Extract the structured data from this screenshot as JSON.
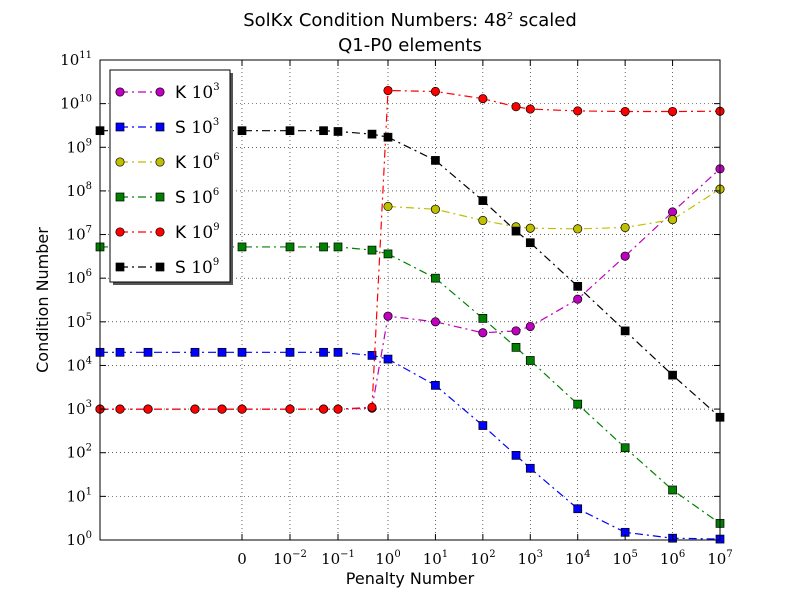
{
  "chart_data": {
    "type": "line",
    "title": [
      "SolKx Condition Numbers: 48²  scaled",
      "Q1-P0 elements"
    ],
    "xlabel": "Penalty Number",
    "ylabel": "Condition Number",
    "yscale": "log",
    "ylim": [
      1,
      100000000000
    ],
    "y_tick_labels": [
      "10^0",
      "10^1",
      "10^2",
      "10^3",
      "10^4",
      "10^5",
      "10^6",
      "10^7",
      "10^8",
      "10^9",
      "10^10",
      "10^11"
    ],
    "x_tick_labels": [
      "0",
      "10^-2",
      "10^-1",
      "10^0",
      "10^1",
      "10^2",
      "10^3",
      "10^4",
      "10^5",
      "10^6",
      "10^7"
    ],
    "grid": true,
    "legend_position": "top-left",
    "series": [
      {
        "name": "K 10^3",
        "color": "#bf00bf",
        "marker": "circle",
        "points": [
          {
            "x": 1e-08,
            "y": 1000
          },
          {
            "x": 3e-08,
            "y": 1000
          },
          {
            "x": 1e-07,
            "y": 1000
          },
          {
            "x": 1e-06,
            "y": 1000
          },
          {
            "x": 1e-05,
            "y": 1000
          },
          {
            "x": 0,
            "y": 1000
          },
          {
            "x": 0.01,
            "y": 1000
          },
          {
            "x": 0.05,
            "y": 1000
          },
          {
            "x": 0.1,
            "y": 1000
          },
          {
            "x": 0.5,
            "y": 1050
          },
          {
            "x": 1,
            "y": 135000
          },
          {
            "x": 10,
            "y": 100000
          },
          {
            "x": 100,
            "y": 56000
          },
          {
            "x": 500,
            "y": 62000
          },
          {
            "x": 1000,
            "y": 78000
          },
          {
            "x": 10000,
            "y": 330000
          },
          {
            "x": 100000,
            "y": 3200000
          },
          {
            "x": 1000000,
            "y": 33000000
          },
          {
            "x": 10000000,
            "y": 320000000
          }
        ]
      },
      {
        "name": "S 10^3",
        "color": "#0000ff",
        "marker": "square",
        "points": [
          {
            "x": 1e-08,
            "y": 20000
          },
          {
            "x": 3e-08,
            "y": 20000
          },
          {
            "x": 1e-07,
            "y": 20000
          },
          {
            "x": 1e-06,
            "y": 20000
          },
          {
            "x": 1e-05,
            "y": 20000
          },
          {
            "x": 0,
            "y": 20000
          },
          {
            "x": 0.01,
            "y": 20000
          },
          {
            "x": 0.05,
            "y": 20000
          },
          {
            "x": 0.1,
            "y": 20000
          },
          {
            "x": 0.5,
            "y": 17000
          },
          {
            "x": 1,
            "y": 14000
          },
          {
            "x": 10,
            "y": 3500
          },
          {
            "x": 100,
            "y": 420
          },
          {
            "x": 500,
            "y": 87
          },
          {
            "x": 1000,
            "y": 44
          },
          {
            "x": 10000,
            "y": 5.2
          },
          {
            "x": 100000,
            "y": 1.5
          },
          {
            "x": 1000000,
            "y": 1.1
          },
          {
            "x": 10000000,
            "y": 1.05
          }
        ]
      },
      {
        "name": "K 10^6",
        "color": "#bfbf00",
        "marker": "circle",
        "points": [
          {
            "x": 1,
            "y": 44000000
          },
          {
            "x": 10,
            "y": 38000000
          },
          {
            "x": 100,
            "y": 21000000
          },
          {
            "x": 500,
            "y": 15000000
          },
          {
            "x": 1000,
            "y": 14000000
          },
          {
            "x": 10000,
            "y": 13500000
          },
          {
            "x": 100000,
            "y": 14500000
          },
          {
            "x": 1000000,
            "y": 22000000
          },
          {
            "x": 10000000,
            "y": 110000000
          }
        ]
      },
      {
        "name": "S 10^6",
        "color": "#008000",
        "marker": "square",
        "points": [
          {
            "x": 1e-08,
            "y": 5200000
          },
          {
            "x": 3e-08,
            "y": 5200000
          },
          {
            "x": 1e-07,
            "y": 5200000
          },
          {
            "x": 1e-06,
            "y": 5200000
          },
          {
            "x": 1e-05,
            "y": 5200000
          },
          {
            "x": 0,
            "y": 5200000
          },
          {
            "x": 0.01,
            "y": 5200000
          },
          {
            "x": 0.05,
            "y": 5200000
          },
          {
            "x": 0.1,
            "y": 5200000
          },
          {
            "x": 0.5,
            "y": 4400000
          },
          {
            "x": 1,
            "y": 3600000
          },
          {
            "x": 10,
            "y": 1000000
          },
          {
            "x": 100,
            "y": 120000
          },
          {
            "x": 500,
            "y": 26000
          },
          {
            "x": 1000,
            "y": 13000
          },
          {
            "x": 10000,
            "y": 1300
          },
          {
            "x": 100000,
            "y": 130
          },
          {
            "x": 1000000,
            "y": 14
          },
          {
            "x": 10000000,
            "y": 2.4
          }
        ]
      },
      {
        "name": "K 10^9",
        "color": "#ff0000",
        "marker": "circle",
        "points": [
          {
            "x": 1e-08,
            "y": 1000
          },
          {
            "x": 3e-08,
            "y": 1000
          },
          {
            "x": 1e-07,
            "y": 1000
          },
          {
            "x": 1e-06,
            "y": 1000
          },
          {
            "x": 1e-05,
            "y": 1000
          },
          {
            "x": 0,
            "y": 1000
          },
          {
            "x": 0.01,
            "y": 1000
          },
          {
            "x": 0.05,
            "y": 1000
          },
          {
            "x": 0.1,
            "y": 1000
          },
          {
            "x": 0.5,
            "y": 1100
          },
          {
            "x": 1,
            "y": 20000000000
          },
          {
            "x": 10,
            "y": 19000000000
          },
          {
            "x": 100,
            "y": 13000000000
          },
          {
            "x": 500,
            "y": 8500000000
          },
          {
            "x": 1000,
            "y": 7500000000
          },
          {
            "x": 10000,
            "y": 6800000000
          },
          {
            "x": 100000,
            "y": 6600000000
          },
          {
            "x": 1000000,
            "y": 6600000000
          },
          {
            "x": 10000000,
            "y": 6700000000
          }
        ]
      },
      {
        "name": "S 10^9",
        "color": "#000000",
        "marker": "square",
        "points": [
          {
            "x": 1e-08,
            "y": 2400000000
          },
          {
            "x": 3e-08,
            "y": 2400000000
          },
          {
            "x": 1e-07,
            "y": 2400000000
          },
          {
            "x": 1e-06,
            "y": 2400000000
          },
          {
            "x": 1e-05,
            "y": 2400000000
          },
          {
            "x": 0,
            "y": 2400000000
          },
          {
            "x": 0.01,
            "y": 2400000000
          },
          {
            "x": 0.05,
            "y": 2400000000
          },
          {
            "x": 0.1,
            "y": 2300000000
          },
          {
            "x": 0.5,
            "y": 2000000000
          },
          {
            "x": 1,
            "y": 1700000000
          },
          {
            "x": 10,
            "y": 500000000
          },
          {
            "x": 100,
            "y": 60000000
          },
          {
            "x": 500,
            "y": 12000000
          },
          {
            "x": 1000,
            "y": 6500000
          },
          {
            "x": 10000,
            "y": 650000
          },
          {
            "x": 100000,
            "y": 62000
          },
          {
            "x": 1000000,
            "y": 6000
          },
          {
            "x": 10000000,
            "y": 650
          }
        ]
      }
    ]
  }
}
